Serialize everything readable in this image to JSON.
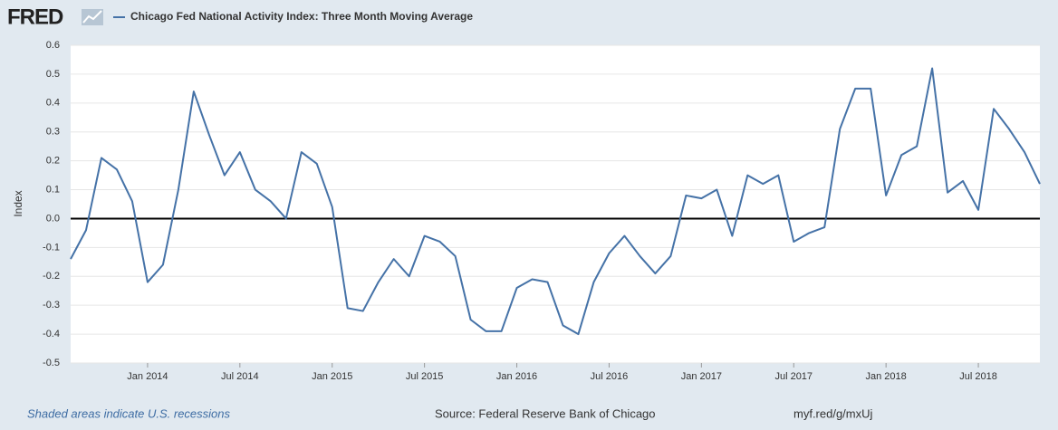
{
  "chart_data": {
    "type": "line",
    "logo": "FRED",
    "ylabel": "Index",
    "footer_left": "Shaded areas indicate U.S. recessions",
    "source": "Source: Federal Reserve Bank of Chicago",
    "link": "myf.red/g/mxUj",
    "x": [
      "2013-08",
      "2013-09",
      "2013-10",
      "2013-11",
      "2013-12",
      "2014-01",
      "2014-02",
      "2014-03",
      "2014-04",
      "2014-05",
      "2014-06",
      "2014-07",
      "2014-08",
      "2014-09",
      "2014-10",
      "2014-11",
      "2014-12",
      "2015-01",
      "2015-02",
      "2015-03",
      "2015-04",
      "2015-05",
      "2015-06",
      "2015-07",
      "2015-08",
      "2015-09",
      "2015-10",
      "2015-11",
      "2015-12",
      "2016-01",
      "2016-02",
      "2016-03",
      "2016-04",
      "2016-05",
      "2016-06",
      "2016-07",
      "2016-08",
      "2016-09",
      "2016-10",
      "2016-11",
      "2016-12",
      "2017-01",
      "2017-02",
      "2017-03",
      "2017-04",
      "2017-05",
      "2017-06",
      "2017-07",
      "2017-08",
      "2017-09",
      "2017-10",
      "2017-11",
      "2017-12",
      "2018-01",
      "2018-02",
      "2018-03",
      "2018-04",
      "2018-05",
      "2018-06",
      "2018-07",
      "2018-08",
      "2018-09",
      "2018-10",
      "2018-11"
    ],
    "series": [
      {
        "name": "Chicago Fed National Activity Index: Three Month Moving Average",
        "color": "#4572a7",
        "values": [
          -0.14,
          -0.04,
          0.21,
          0.17,
          0.06,
          -0.22,
          -0.16,
          0.1,
          0.44,
          0.29,
          0.15,
          0.23,
          0.1,
          0.06,
          0.0,
          0.23,
          0.19,
          0.04,
          -0.31,
          -0.32,
          -0.22,
          -0.14,
          -0.2,
          -0.06,
          -0.08,
          -0.13,
          -0.35,
          -0.39,
          -0.39,
          -0.24,
          -0.21,
          -0.22,
          -0.37,
          -0.4,
          -0.22,
          -0.12,
          -0.06,
          -0.13,
          -0.19,
          -0.13,
          0.08,
          0.07,
          0.1,
          -0.06,
          0.15,
          0.12,
          0.15,
          -0.08,
          -0.05,
          -0.03,
          0.31,
          0.45,
          0.45,
          0.08,
          0.22,
          0.25,
          0.52,
          0.09,
          0.13,
          0.03,
          0.38,
          0.31,
          0.23,
          0.12
        ]
      }
    ],
    "xlim": [
      "2013-08",
      "2018-11"
    ],
    "xticks": [
      {
        "value": "2014-01",
        "label": "Jan 2014"
      },
      {
        "value": "2014-07",
        "label": "Jul 2014"
      },
      {
        "value": "2015-01",
        "label": "Jan 2015"
      },
      {
        "value": "2015-07",
        "label": "Jul 2015"
      },
      {
        "value": "2016-01",
        "label": "Jan 2016"
      },
      {
        "value": "2016-07",
        "label": "Jul 2016"
      },
      {
        "value": "2017-01",
        "label": "Jan 2017"
      },
      {
        "value": "2017-07",
        "label": "Jul 2017"
      },
      {
        "value": "2018-01",
        "label": "Jan 2018"
      },
      {
        "value": "2018-07",
        "label": "Jul 2018"
      }
    ],
    "ylim": [
      -0.5,
      0.6
    ],
    "yticks": [
      0.6,
      0.5,
      0.4,
      0.3,
      0.2,
      0.1,
      {
        "value": 0,
        "label": "0.0"
      },
      -0.1,
      -0.2,
      -0.3,
      -0.4,
      -0.5
    ],
    "grid": true,
    "zero_line": true
  }
}
